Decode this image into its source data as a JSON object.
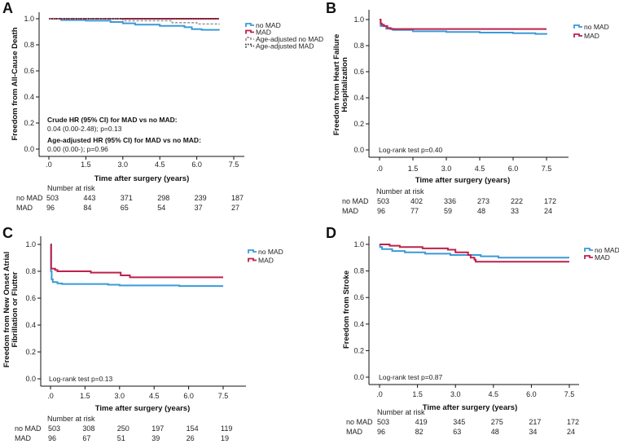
{
  "colors": {
    "no_mad": "#3a9ad9",
    "mad": "#c0204a",
    "age_adj_no_mad": "#9a9a9a",
    "age_adj_mad": "#333333"
  },
  "chart_data": [
    {
      "type": "line",
      "step": true,
      "panel_label": "A",
      "ylabel": "Freedom from All-Cause Death",
      "xlabel": "Time after surgery (years)",
      "xlim": [
        0,
        7.5
      ],
      "ylim": [
        0,
        1.0
      ],
      "xticks": [
        ".0",
        "1.5",
        "3.0",
        "4.5",
        "6.0",
        "7.5"
      ],
      "yticks": [
        "0.0",
        "0.2",
        "0.4",
        "0.6",
        "0.8",
        "1.0"
      ],
      "legend": "right",
      "series": [
        {
          "name": "no MAD",
          "color": "#3a9ad9",
          "style": "solid",
          "points": [
            [
              0,
              1
            ],
            [
              0.5,
              0.99
            ],
            [
              1.5,
              0.985
            ],
            [
              2.5,
              0.975
            ],
            [
              3.0,
              0.965
            ],
            [
              3.5,
              0.955
            ],
            [
              4.5,
              0.945
            ],
            [
              5.5,
              0.935
            ],
            [
              5.8,
              0.92
            ],
            [
              6.2,
              0.915
            ],
            [
              6.9,
              0.91
            ]
          ]
        },
        {
          "name": "MAD",
          "color": "#c0204a",
          "style": "solid",
          "points": [
            [
              0,
              1
            ],
            [
              6.9,
              1
            ]
          ]
        },
        {
          "name": "Age-adjusted no MAD",
          "color": "#9a9a9a",
          "style": "dashed",
          "points": [
            [
              0,
              1
            ],
            [
              3.0,
              0.985
            ],
            [
              5.0,
              0.97
            ],
            [
              6.0,
              0.96
            ],
            [
              6.9,
              0.955
            ]
          ]
        },
        {
          "name": "Age-adjusted MAD",
          "color": "#333333",
          "style": "dotted",
          "points": [
            [
              0,
              1
            ],
            [
              6.9,
              0.995
            ]
          ]
        }
      ],
      "annotations": [
        {
          "text": "Crude HR (95% CI) for MAD vs no MAD:",
          "bold": true
        },
        {
          "text": "0.04 (0.00-2.48); p=0.13",
          "bold": false
        },
        {
          "text": "Age-adjusted HR (95% CI) for MAD vs no MAD:",
          "bold": true
        },
        {
          "text": "0.00 (0.00-); p=0.96",
          "bold": false
        }
      ],
      "risk_table": {
        "title": "Number at risk",
        "rows": [
          {
            "label": "no MAD",
            "values": [
              "503",
              "443",
              "371",
              "298",
              "239",
              "187"
            ]
          },
          {
            "label": "MAD",
            "values": [
              "96",
              "84",
              "65",
              "54",
              "37",
              "27"
            ]
          }
        ]
      }
    },
    {
      "type": "line",
      "step": true,
      "panel_label": "B",
      "ylabel": [
        "Freedom from Heart Failure",
        "Hospitalization"
      ],
      "xlabel": "Time after surgery (years)",
      "xlim": [
        0,
        7.5
      ],
      "ylim": [
        0,
        1.0
      ],
      "xticks": [
        ".0",
        "1.5",
        "3.0",
        "4.5",
        "6.0",
        "7.5"
      ],
      "yticks": [
        "0.0",
        "0.2",
        "0.4",
        "0.6",
        "0.8",
        "1.0"
      ],
      "legend": "right",
      "series": [
        {
          "name": "no MAD",
          "color": "#3a9ad9",
          "style": "solid",
          "points": [
            [
              0,
              1
            ],
            [
              0.05,
              0.95
            ],
            [
              0.3,
              0.93
            ],
            [
              0.6,
              0.92
            ],
            [
              1.5,
              0.91
            ],
            [
              3.0,
              0.905
            ],
            [
              4.5,
              0.9
            ],
            [
              6.0,
              0.895
            ],
            [
              7.0,
              0.89
            ],
            [
              7.5,
              0.885
            ]
          ]
        },
        {
          "name": "MAD",
          "color": "#c0204a",
          "style": "solid",
          "points": [
            [
              0,
              1
            ],
            [
              0.05,
              0.97
            ],
            [
              0.1,
              0.96
            ],
            [
              0.2,
              0.95
            ],
            [
              0.35,
              0.935
            ],
            [
              0.5,
              0.927
            ],
            [
              7.5,
              0.927
            ]
          ]
        }
      ],
      "annotations": [
        {
          "text": "Log-rank test p=0.40",
          "bold": false
        }
      ],
      "risk_table": {
        "title": "Number at risk",
        "rows": [
          {
            "label": "no MAD",
            "values": [
              "503",
              "402",
              "336",
              "273",
              "222",
              "172"
            ]
          },
          {
            "label": "MAD",
            "values": [
              "96",
              "77",
              "59",
              "48",
              "33",
              "24"
            ]
          }
        ]
      }
    },
    {
      "type": "line",
      "step": true,
      "panel_label": "C",
      "ylabel": [
        "Freedom from New Onset Atrial",
        "Fibrillation or Flutter"
      ],
      "xlabel": "Time after surgery (years)",
      "xlim": [
        0,
        7.5
      ],
      "ylim": [
        0,
        1.0
      ],
      "xticks": [
        ".0",
        "1.5",
        "3.0",
        "4.5",
        "6.0",
        "7.5"
      ],
      "yticks": [
        "0.0",
        "0.2",
        "0.4",
        "0.6",
        "0.8",
        "1.0"
      ],
      "legend": "right",
      "series": [
        {
          "name": "no MAD",
          "color": "#3a9ad9",
          "style": "solid",
          "points": [
            [
              0,
              1
            ],
            [
              0.02,
              0.8
            ],
            [
              0.05,
              0.74
            ],
            [
              0.1,
              0.72
            ],
            [
              0.3,
              0.71
            ],
            [
              0.5,
              0.705
            ],
            [
              2.5,
              0.7
            ],
            [
              3.0,
              0.695
            ],
            [
              5.6,
              0.69
            ],
            [
              7.5,
              0.69
            ]
          ]
        },
        {
          "name": "MAD",
          "color": "#c0204a",
          "style": "solid",
          "points": [
            [
              0,
              1
            ],
            [
              0.03,
              0.82
            ],
            [
              0.2,
              0.81
            ],
            [
              0.3,
              0.8
            ],
            [
              1.75,
              0.79
            ],
            [
              3.05,
              0.77
            ],
            [
              3.45,
              0.755
            ],
            [
              7.5,
              0.755
            ]
          ]
        }
      ],
      "annotations": [
        {
          "text": "Log-rank test p=0.13",
          "bold": false
        }
      ],
      "risk_table": {
        "title": "Number at risk",
        "rows": [
          {
            "label": "no MAD",
            "values": [
              "503",
              "308",
              "250",
              "197",
              "154",
              "119"
            ]
          },
          {
            "label": "MAD",
            "values": [
              "96",
              "67",
              "51",
              "39",
              "26",
              "19"
            ]
          }
        ]
      }
    },
    {
      "type": "line",
      "step": true,
      "panel_label": "D",
      "ylabel": "Freedom from Stroke",
      "xlabel": "Time after surgery (years)",
      "xlim": [
        0,
        7.5
      ],
      "ylim": [
        0,
        1.0
      ],
      "xticks": [
        ".0",
        "1.5",
        "3.0",
        "4.5",
        "6.0",
        "7.5"
      ],
      "yticks": [
        "0.0",
        "0.2",
        "0.4",
        "0.6",
        "0.8",
        "1.0"
      ],
      "legend": "right",
      "series": [
        {
          "name": "no MAD",
          "color": "#3a9ad9",
          "style": "solid",
          "points": [
            [
              0,
              1
            ],
            [
              0.02,
              0.98
            ],
            [
              0.1,
              0.965
            ],
            [
              0.5,
              0.95
            ],
            [
              1.0,
              0.94
            ],
            [
              1.8,
              0.93
            ],
            [
              2.8,
              0.92
            ],
            [
              4.0,
              0.91
            ],
            [
              4.7,
              0.9
            ],
            [
              7.5,
              0.9
            ]
          ]
        },
        {
          "name": "MAD",
          "color": "#c0204a",
          "style": "solid",
          "points": [
            [
              0,
              1
            ],
            [
              0.4,
              0.99
            ],
            [
              0.8,
              0.98
            ],
            [
              1.7,
              0.97
            ],
            [
              2.7,
              0.96
            ],
            [
              3.0,
              0.94
            ],
            [
              3.5,
              0.92
            ],
            [
              3.6,
              0.9
            ],
            [
              3.75,
              0.885
            ],
            [
              3.8,
              0.87
            ],
            [
              7.5,
              0.87
            ]
          ]
        }
      ],
      "annotations": [
        {
          "text": "Log-rank test p=0.87",
          "bold": false
        }
      ],
      "risk_table": {
        "title": "Number at risk",
        "rows": [
          {
            "label": "no MAD",
            "values": [
              "503",
              "419",
              "345",
              "275",
              "217",
              "172"
            ]
          },
          {
            "label": "MAD",
            "values": [
              "96",
              "82",
              "63",
              "48",
              "34",
              "24"
            ]
          }
        ]
      }
    }
  ]
}
